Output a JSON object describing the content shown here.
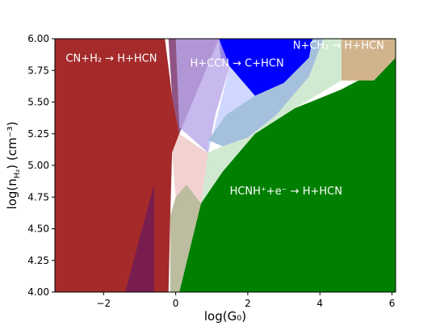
{
  "chart_data": {
    "type": "area",
    "xlabel": "log(G₀)",
    "ylabel_main": "log(n",
    "ylabel_sub": "H₂",
    "ylabel_tail": ") (cm⁻³)",
    "xlim": [
      -3.35,
      6.1
    ],
    "ylim": [
      4.0,
      6.0
    ],
    "xticks": [
      -2,
      0,
      2,
      4,
      6
    ],
    "xtick_labels": [
      "−2",
      "0",
      "2",
      "4",
      "6"
    ],
    "yticks": [
      4.0,
      4.25,
      4.5,
      4.75,
      5.0,
      5.25,
      5.5,
      5.75,
      6.0
    ],
    "ytick_labels": [
      "4.00",
      "4.25",
      "4.50",
      "4.75",
      "5.00",
      "5.25",
      "5.50",
      "5.75",
      "6.00"
    ],
    "grid": false,
    "regions": [
      {
        "name": "CN+H2 → H+HCN",
        "label": "CN+H₂ → H+HCN",
        "label_at": [
          -3.05,
          5.82
        ],
        "color": "#a52a2a",
        "opacity": 1.0,
        "points": [
          [
            -3.35,
            4.0
          ],
          [
            -3.35,
            6.0
          ],
          [
            -0.3,
            6.0
          ],
          [
            -0.1,
            5.55
          ],
          [
            0.1,
            5.25
          ],
          [
            -0.1,
            5.1
          ],
          [
            -0.15,
            4.6
          ],
          [
            -0.2,
            4.0
          ]
        ]
      },
      {
        "name": "overlap-a",
        "label": "",
        "color": "#6b1a5c",
        "opacity": 0.75,
        "points": [
          [
            -1.4,
            4.0
          ],
          [
            -0.6,
            4.85
          ],
          [
            -0.6,
            4.0
          ]
        ]
      },
      {
        "name": "overlap-b",
        "label": "",
        "color": "#6b1a5c",
        "opacity": 0.75,
        "points": [
          [
            -0.2,
            6.0
          ],
          [
            1.2,
            6.0
          ],
          [
            0.1,
            5.25
          ],
          [
            -0.1,
            5.55
          ]
        ]
      },
      {
        "name": "HCNH+ + e- → H+HCN",
        "label": "HCNH⁺+e⁻ → H+HCN",
        "label_at": [
          1.5,
          4.77
        ],
        "color": "#008000",
        "opacity": 1.0,
        "points": [
          [
            0.1,
            4.0
          ],
          [
            0.7,
            4.7
          ],
          [
            1.3,
            4.95
          ],
          [
            2.2,
            5.25
          ],
          [
            3.3,
            5.45
          ],
          [
            4.6,
            5.6
          ],
          [
            5.6,
            5.75
          ],
          [
            6.1,
            5.85
          ],
          [
            6.1,
            4.0
          ]
        ]
      },
      {
        "name": "H+CCN → C+HCN",
        "label": "H+CCN → C+HCN",
        "label_at": [
          0.4,
          5.78
        ],
        "color": "#0000ff",
        "opacity": 1.0,
        "points": [
          [
            1.2,
            6.0
          ],
          [
            1.25,
            5.85
          ],
          [
            1.5,
            5.78
          ],
          [
            2.2,
            5.55
          ],
          [
            3.0,
            5.65
          ],
          [
            3.7,
            5.85
          ],
          [
            3.8,
            6.0
          ]
        ]
      },
      {
        "name": "N+CH2 → H+HCN",
        "label": "N+CH₂ → H+HCN",
        "label_at": [
          3.25,
          5.92
        ],
        "color": "#d2b48c",
        "opacity": 1.0,
        "points": [
          [
            4.6,
            6.0
          ],
          [
            4.6,
            5.67
          ],
          [
            5.5,
            5.67
          ],
          [
            6.1,
            5.85
          ],
          [
            6.1,
            6.0
          ]
        ]
      },
      {
        "name": "lavender-zone",
        "label": "",
        "color": "#b9a7e8",
        "opacity": 0.8,
        "points": [
          [
            0.0,
            6.0
          ],
          [
            1.2,
            6.0
          ],
          [
            1.5,
            5.78
          ],
          [
            1.1,
            5.4
          ],
          [
            0.9,
            5.1
          ],
          [
            0.3,
            5.25
          ],
          [
            0.1,
            5.3
          ]
        ]
      },
      {
        "name": "light-blue-zone",
        "label": "",
        "color": "#c8d0ff",
        "opacity": 0.85,
        "points": [
          [
            1.5,
            5.78
          ],
          [
            2.2,
            5.55
          ],
          [
            1.4,
            5.4
          ],
          [
            0.9,
            5.2
          ],
          [
            0.9,
            5.1
          ]
        ]
      },
      {
        "name": "steel-blue-band",
        "label": "",
        "color": "#9ab9d8",
        "opacity": 0.9,
        "points": [
          [
            0.9,
            5.2
          ],
          [
            1.4,
            5.4
          ],
          [
            2.2,
            5.55
          ],
          [
            3.0,
            5.65
          ],
          [
            3.7,
            5.85
          ],
          [
            3.8,
            6.0
          ],
          [
            4.1,
            6.0
          ],
          [
            3.7,
            5.7
          ],
          [
            2.8,
            5.4
          ],
          [
            2.0,
            5.22
          ],
          [
            1.3,
            5.15
          ]
        ]
      },
      {
        "name": "pale-green-band",
        "label": "",
        "color": "#cde8cd",
        "opacity": 0.95,
        "points": [
          [
            1.3,
            5.15
          ],
          [
            2.0,
            5.22
          ],
          [
            2.8,
            5.4
          ],
          [
            3.7,
            5.7
          ],
          [
            4.1,
            6.0
          ],
          [
            4.6,
            6.0
          ],
          [
            4.6,
            5.67
          ],
          [
            3.3,
            5.45
          ],
          [
            2.2,
            5.25
          ],
          [
            1.3,
            4.95
          ],
          [
            0.7,
            4.7
          ],
          [
            0.9,
            5.1
          ]
        ]
      },
      {
        "name": "pink-zone",
        "label": "",
        "color": "#f0d0cf",
        "opacity": 0.95,
        "points": [
          [
            -0.1,
            5.1
          ],
          [
            0.1,
            5.25
          ],
          [
            0.6,
            5.15
          ],
          [
            0.9,
            5.1
          ],
          [
            0.7,
            4.7
          ],
          [
            0.3,
            4.85
          ],
          [
            0.0,
            4.75
          ]
        ]
      },
      {
        "name": "khaki-zone",
        "label": "",
        "color": "#b8b89a",
        "opacity": 0.95,
        "points": [
          [
            -0.15,
            4.0
          ],
          [
            -0.15,
            4.6
          ],
          [
            0.0,
            4.75
          ],
          [
            0.3,
            4.85
          ],
          [
            0.7,
            4.7
          ],
          [
            0.1,
            4.0
          ]
        ]
      }
    ]
  }
}
